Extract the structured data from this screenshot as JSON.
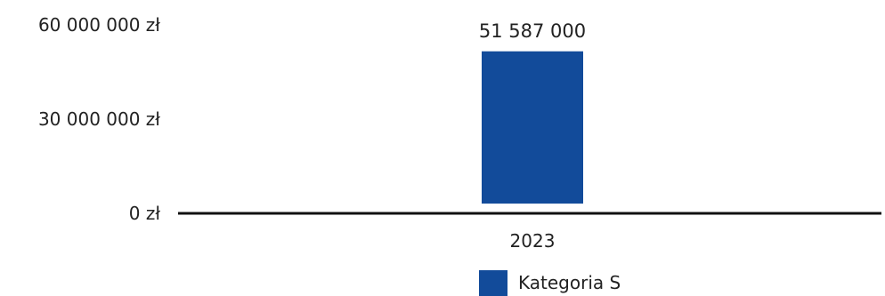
{
  "chart_data": {
    "type": "bar",
    "categories": [
      "2023"
    ],
    "series": [
      {
        "name": "Kategoria S",
        "values": [
          51587000
        ]
      }
    ],
    "ylim": [
      0,
      60000000
    ],
    "y_ticks": [
      0,
      30000000,
      60000000
    ],
    "y_tick_labels": [
      "0 zł",
      "30 000 000 zł",
      "60 000 000 zł"
    ],
    "data_labels": [
      "51 587 000"
    ],
    "title": "",
    "xlabel": "",
    "ylabel": "",
    "grid": false,
    "legend_position": "bottom-center",
    "colors": {
      "bar": "#124b9a",
      "axis": "#111111",
      "text": "#222222"
    }
  }
}
